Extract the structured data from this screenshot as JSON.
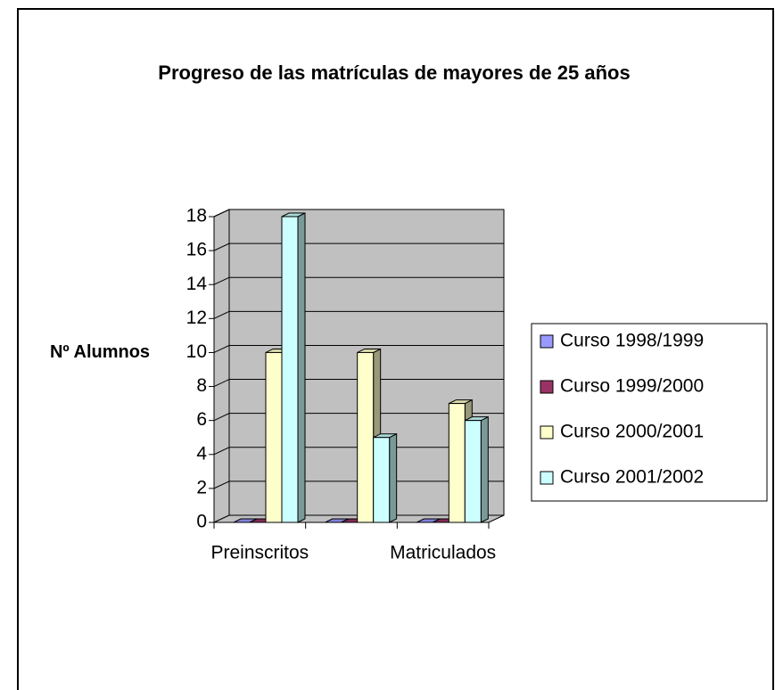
{
  "chart_data": {
    "type": "bar3d",
    "title": "Progreso de las matrículas de mayores de 25 años",
    "y_label": "Nº Alumnos",
    "categories": [
      "Preinscritos",
      null,
      "Matriculados"
    ],
    "series": [
      {
        "name": "Curso 1998/1999",
        "color": "#9999ff",
        "values": [
          0,
          0,
          0
        ]
      },
      {
        "name": "Curso 1999/2000",
        "color": "#993366",
        "values": [
          0,
          0,
          0
        ]
      },
      {
        "name": "Curso 2000/2001",
        "color": "#ffffcc",
        "values": [
          10,
          10,
          7
        ]
      },
      {
        "name": "Curso 2001/2002",
        "color": "#ccffff",
        "values": [
          18,
          5,
          6
        ]
      }
    ],
    "ylim": [
      0,
      18
    ],
    "yticks": [
      0,
      2,
      4,
      6,
      8,
      10,
      12,
      14,
      16,
      18
    ],
    "grid": true,
    "legend": "right"
  }
}
